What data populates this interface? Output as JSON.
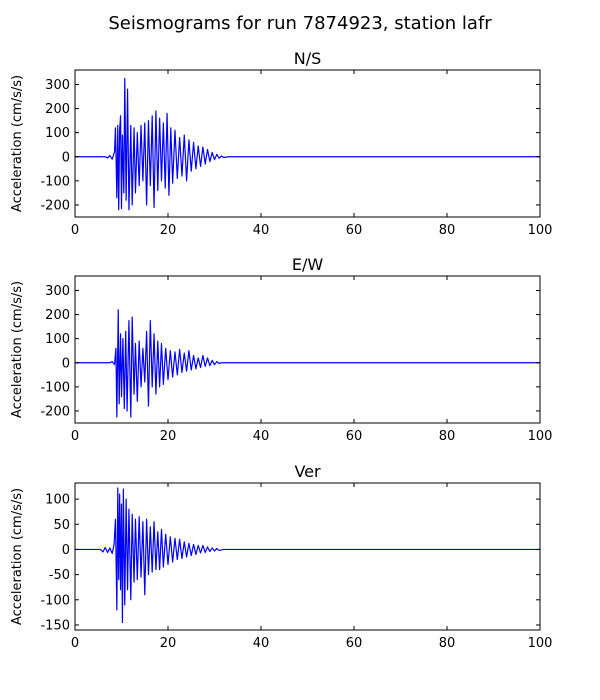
{
  "figure_title": "Seismograms for run 7874923, station lafr",
  "colors": {
    "trace": "#0000ff",
    "axes": "#000000",
    "background": "#ffffff"
  },
  "chart_data": [
    {
      "type": "line",
      "title": "N/S",
      "xlabel": "",
      "ylabel": "Acceleration (cm/s/s)",
      "xlim": [
        0,
        100
      ],
      "ylim": [
        -250,
        360
      ],
      "xticks": [
        0,
        20,
        40,
        60,
        80,
        100
      ],
      "yticks": [
        -200,
        -100,
        0,
        100,
        200,
        300
      ],
      "grid": false,
      "series": [
        {
          "x": [
            0,
            6.5,
            7.0,
            7.5,
            8.0,
            8.5,
            8.7,
            9.0,
            9.2,
            9.4,
            9.6,
            9.8,
            10.0,
            10.2,
            10.5,
            10.7,
            11.0,
            11.3,
            11.6,
            12.0,
            12.3,
            12.7,
            13.0,
            13.4,
            13.8,
            14.2,
            14.6,
            15.0,
            15.4,
            15.8,
            16.2,
            16.6,
            17.0,
            17.4,
            17.8,
            18.2,
            18.6,
            19.0,
            19.4,
            19.8,
            20.2,
            20.6,
            21.0,
            21.5,
            22.0,
            22.5,
            23.0,
            23.5,
            24.0,
            24.5,
            25.0,
            25.5,
            26.0,
            26.5,
            27.0,
            27.5,
            28.0,
            28.5,
            29.0,
            29.5,
            30.0,
            30.5,
            31.0,
            31.5,
            32.0,
            33.0,
            100
          ],
          "y": [
            0,
            0,
            -5,
            5,
            -10,
            20,
            120,
            -170,
            130,
            -220,
            110,
            170,
            -215,
            90,
            -150,
            325,
            -180,
            280,
            -220,
            130,
            -200,
            120,
            -150,
            100,
            -120,
            130,
            -100,
            140,
            -200,
            150,
            -120,
            170,
            -210,
            190,
            -140,
            160,
            -100,
            140,
            -130,
            180,
            -160,
            120,
            -110,
            110,
            -90,
            80,
            -80,
            90,
            -100,
            70,
            -60,
            60,
            -50,
            45,
            -40,
            40,
            -30,
            30,
            -20,
            18,
            -12,
            10,
            -6,
            3,
            -3,
            0,
            0
          ]
        }
      ]
    },
    {
      "type": "line",
      "title": "E/W",
      "xlabel": "",
      "ylabel": "Acceleration (cm/s/s)",
      "xlim": [
        0,
        100
      ],
      "ylim": [
        -250,
        360
      ],
      "xticks": [
        0,
        20,
        40,
        60,
        80,
        100
      ],
      "yticks": [
        -200,
        -100,
        0,
        100,
        200,
        300
      ],
      "grid": false,
      "series": [
        {
          "x": [
            0,
            7.5,
            8.0,
            8.5,
            8.8,
            9.0,
            9.3,
            9.5,
            9.8,
            10.0,
            10.3,
            10.6,
            10.9,
            11.2,
            11.6,
            12.0,
            12.3,
            12.7,
            13.0,
            13.4,
            13.8,
            14.2,
            14.6,
            15.0,
            15.4,
            15.8,
            16.2,
            16.6,
            17.0,
            17.4,
            17.8,
            18.2,
            18.6,
            19.0,
            19.5,
            20.0,
            20.5,
            21.0,
            21.5,
            22.0,
            22.5,
            23.0,
            23.5,
            24.0,
            24.5,
            25.0,
            25.5,
            26.0,
            26.5,
            27.0,
            27.5,
            28.0,
            28.5,
            29.0,
            29.5,
            30.0,
            30.5,
            31.0,
            31.5,
            100
          ],
          "y": [
            0,
            0,
            5,
            -8,
            60,
            -225,
            220,
            -170,
            120,
            -140,
            100,
            -190,
            130,
            -200,
            175,
            -225,
            190,
            -130,
            80,
            -160,
            90,
            -100,
            60,
            -80,
            130,
            -180,
            175,
            -100,
            120,
            -130,
            90,
            -100,
            80,
            -90,
            60,
            -70,
            50,
            -60,
            45,
            -50,
            55,
            -40,
            40,
            -35,
            50,
            -30,
            30,
            -25,
            20,
            -20,
            30,
            -15,
            20,
            -12,
            10,
            -8,
            5,
            -3,
            0,
            0
          ]
        }
      ]
    },
    {
      "type": "line",
      "title": "Ver",
      "xlabel": "",
      "ylabel": "Acceleration (cm/s/s)",
      "xlim": [
        0,
        100
      ],
      "ylim": [
        -160,
        132
      ],
      "xticks": [
        0,
        20,
        40,
        60,
        80,
        100
      ],
      "yticks": [
        -150,
        -100,
        -50,
        0,
        50,
        100
      ],
      "grid": false,
      "series": [
        {
          "x": [
            0,
            5.5,
            6.0,
            6.5,
            7.0,
            7.5,
            8.0,
            8.4,
            8.7,
            9.0,
            9.2,
            9.4,
            9.6,
            9.8,
            10.0,
            10.2,
            10.4,
            10.7,
            11.0,
            11.3,
            11.6,
            12.0,
            12.3,
            12.7,
            13.0,
            13.4,
            13.8,
            14.2,
            14.6,
            15.0,
            15.4,
            15.8,
            16.2,
            16.6,
            17.0,
            17.4,
            17.8,
            18.2,
            18.6,
            19.0,
            19.5,
            20.0,
            20.5,
            21.0,
            21.5,
            22.0,
            22.5,
            23.0,
            23.5,
            24.0,
            24.5,
            25.0,
            25.5,
            26.0,
            26.5,
            27.0,
            27.5,
            28.0,
            28.5,
            29.0,
            29.5,
            30.0,
            30.5,
            31.0,
            32.0,
            100
          ],
          "y": [
            0,
            0,
            -5,
            4,
            -6,
            3,
            -8,
            10,
            60,
            -120,
            122,
            -60,
            110,
            -80,
            90,
            -145,
            120,
            -110,
            100,
            -80,
            80,
            -100,
            70,
            -65,
            60,
            -60,
            65,
            -55,
            55,
            -90,
            60,
            -50,
            45,
            -45,
            55,
            -40,
            35,
            -40,
            40,
            -35,
            30,
            -30,
            25,
            -25,
            22,
            -20,
            20,
            -18,
            15,
            -15,
            12,
            -12,
            10,
            -10,
            8,
            -7,
            8,
            -6,
            5,
            -4,
            3,
            -3,
            2,
            -2,
            0,
            0
          ]
        }
      ]
    }
  ]
}
